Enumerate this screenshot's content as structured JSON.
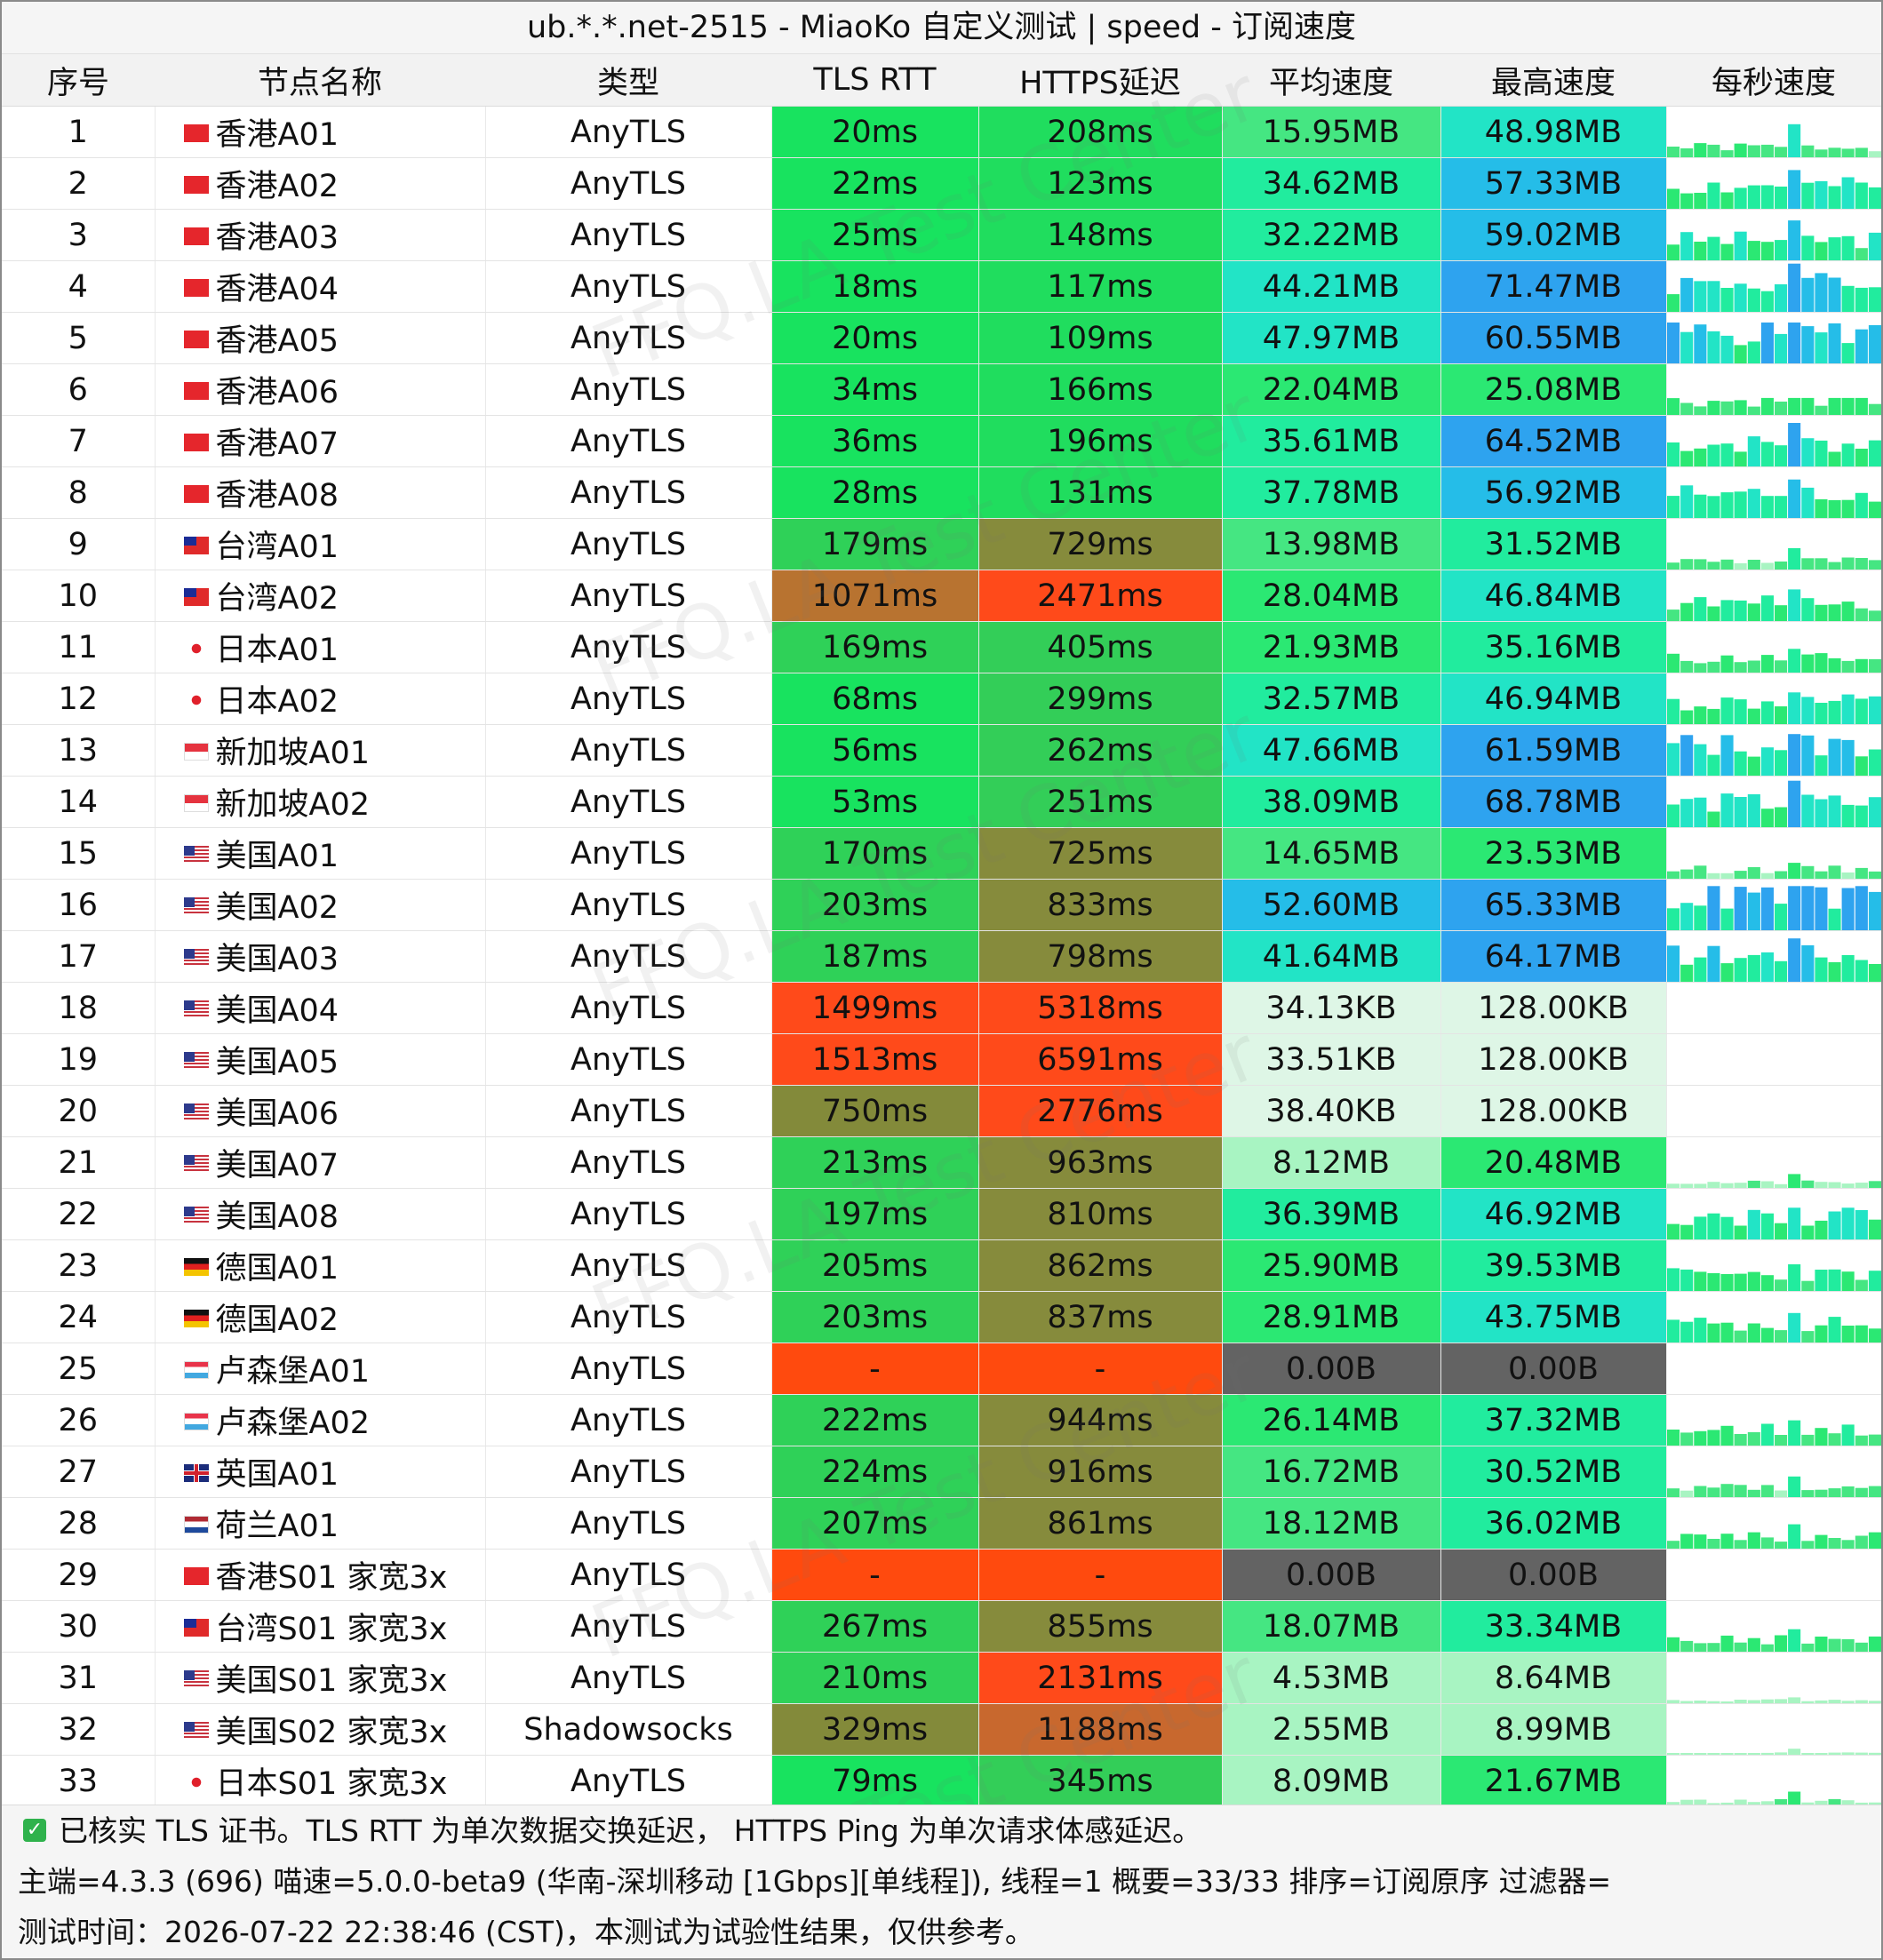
{
  "title": "ub.*.*.net-2515 - MiaoKo 自定义测试 | speed - 订阅速度",
  "watermark": "FFQ.LA Test Center",
  "headers": [
    "序号",
    "节点名称",
    "类型",
    "TLS RTT",
    "HTTPS延迟",
    "平均速度",
    "最高速度",
    "每秒速度"
  ],
  "rows": [
    {
      "no": "1",
      "flag": "hk",
      "name": "香港A01",
      "type": "AnyTLS",
      "tls": "20ms",
      "https": "208ms",
      "avg": "15.95MB",
      "max": "48.98MB"
    },
    {
      "no": "2",
      "flag": "hk",
      "name": "香港A02",
      "type": "AnyTLS",
      "tls": "22ms",
      "https": "123ms",
      "avg": "34.62MB",
      "max": "57.33MB"
    },
    {
      "no": "3",
      "flag": "hk",
      "name": "香港A03",
      "type": "AnyTLS",
      "tls": "25ms",
      "https": "148ms",
      "avg": "32.22MB",
      "max": "59.02MB"
    },
    {
      "no": "4",
      "flag": "hk",
      "name": "香港A04",
      "type": "AnyTLS",
      "tls": "18ms",
      "https": "117ms",
      "avg": "44.21MB",
      "max": "71.47MB"
    },
    {
      "no": "5",
      "flag": "hk",
      "name": "香港A05",
      "type": "AnyTLS",
      "tls": "20ms",
      "https": "109ms",
      "avg": "47.97MB",
      "max": "60.55MB"
    },
    {
      "no": "6",
      "flag": "hk",
      "name": "香港A06",
      "type": "AnyTLS",
      "tls": "34ms",
      "https": "166ms",
      "avg": "22.04MB",
      "max": "25.08MB"
    },
    {
      "no": "7",
      "flag": "hk",
      "name": "香港A07",
      "type": "AnyTLS",
      "tls": "36ms",
      "https": "196ms",
      "avg": "35.61MB",
      "max": "64.52MB"
    },
    {
      "no": "8",
      "flag": "hk",
      "name": "香港A08",
      "type": "AnyTLS",
      "tls": "28ms",
      "https": "131ms",
      "avg": "37.78MB",
      "max": "56.92MB"
    },
    {
      "no": "9",
      "flag": "tw",
      "name": "台湾A01",
      "type": "AnyTLS",
      "tls": "179ms",
      "https": "729ms",
      "avg": "13.98MB",
      "max": "31.52MB"
    },
    {
      "no": "10",
      "flag": "tw",
      "name": "台湾A02",
      "type": "AnyTLS",
      "tls": "1071ms",
      "https": "2471ms",
      "avg": "28.04MB",
      "max": "46.84MB"
    },
    {
      "no": "11",
      "flag": "jp",
      "name": "日本A01",
      "type": "AnyTLS",
      "tls": "169ms",
      "https": "405ms",
      "avg": "21.93MB",
      "max": "35.16MB"
    },
    {
      "no": "12",
      "flag": "jp",
      "name": "日本A02",
      "type": "AnyTLS",
      "tls": "68ms",
      "https": "299ms",
      "avg": "32.57MB",
      "max": "46.94MB"
    },
    {
      "no": "13",
      "flag": "sg",
      "name": "新加坡A01",
      "type": "AnyTLS",
      "tls": "56ms",
      "https": "262ms",
      "avg": "47.66MB",
      "max": "61.59MB"
    },
    {
      "no": "14",
      "flag": "sg",
      "name": "新加坡A02",
      "type": "AnyTLS",
      "tls": "53ms",
      "https": "251ms",
      "avg": "38.09MB",
      "max": "68.78MB"
    },
    {
      "no": "15",
      "flag": "us",
      "name": "美国A01",
      "type": "AnyTLS",
      "tls": "170ms",
      "https": "725ms",
      "avg": "14.65MB",
      "max": "23.53MB"
    },
    {
      "no": "16",
      "flag": "us",
      "name": "美国A02",
      "type": "AnyTLS",
      "tls": "203ms",
      "https": "833ms",
      "avg": "52.60MB",
      "max": "65.33MB"
    },
    {
      "no": "17",
      "flag": "us",
      "name": "美国A03",
      "type": "AnyTLS",
      "tls": "187ms",
      "https": "798ms",
      "avg": "41.64MB",
      "max": "64.17MB"
    },
    {
      "no": "18",
      "flag": "us",
      "name": "美国A04",
      "type": "AnyTLS",
      "tls": "1499ms",
      "https": "5318ms",
      "avg": "34.13KB",
      "max": "128.00KB"
    },
    {
      "no": "19",
      "flag": "us",
      "name": "美国A05",
      "type": "AnyTLS",
      "tls": "1513ms",
      "https": "6591ms",
      "avg": "33.51KB",
      "max": "128.00KB"
    },
    {
      "no": "20",
      "flag": "us",
      "name": "美国A06",
      "type": "AnyTLS",
      "tls": "750ms",
      "https": "2776ms",
      "avg": "38.40KB",
      "max": "128.00KB"
    },
    {
      "no": "21",
      "flag": "us",
      "name": "美国A07",
      "type": "AnyTLS",
      "tls": "213ms",
      "https": "963ms",
      "avg": "8.12MB",
      "max": "20.48MB"
    },
    {
      "no": "22",
      "flag": "us",
      "name": "美国A08",
      "type": "AnyTLS",
      "tls": "197ms",
      "https": "810ms",
      "avg": "36.39MB",
      "max": "46.92MB"
    },
    {
      "no": "23",
      "flag": "de",
      "name": "德国A01",
      "type": "AnyTLS",
      "tls": "205ms",
      "https": "862ms",
      "avg": "25.90MB",
      "max": "39.53MB"
    },
    {
      "no": "24",
      "flag": "de",
      "name": "德国A02",
      "type": "AnyTLS",
      "tls": "203ms",
      "https": "837ms",
      "avg": "28.91MB",
      "max": "43.75MB"
    },
    {
      "no": "25",
      "flag": "lu",
      "name": "卢森堡A01",
      "type": "AnyTLS",
      "tls": "-",
      "https": "-",
      "avg": "0.00B",
      "max": "0.00B"
    },
    {
      "no": "26",
      "flag": "lu",
      "name": "卢森堡A02",
      "type": "AnyTLS",
      "tls": "222ms",
      "https": "944ms",
      "avg": "26.14MB",
      "max": "37.32MB"
    },
    {
      "no": "27",
      "flag": "gb",
      "name": "英国A01",
      "type": "AnyTLS",
      "tls": "224ms",
      "https": "916ms",
      "avg": "16.72MB",
      "max": "30.52MB"
    },
    {
      "no": "28",
      "flag": "nl",
      "name": "荷兰A01",
      "type": "AnyTLS",
      "tls": "207ms",
      "https": "861ms",
      "avg": "18.12MB",
      "max": "36.02MB"
    },
    {
      "no": "29",
      "flag": "hk",
      "name": "香港S01 家宽3x",
      "type": "AnyTLS",
      "tls": "-",
      "https": "-",
      "avg": "0.00B",
      "max": "0.00B"
    },
    {
      "no": "30",
      "flag": "tw",
      "name": "台湾S01 家宽3x",
      "type": "AnyTLS",
      "tls": "267ms",
      "https": "855ms",
      "avg": "18.07MB",
      "max": "33.34MB"
    },
    {
      "no": "31",
      "flag": "us",
      "name": "美国S01 家宽3x",
      "type": "AnyTLS",
      "tls": "210ms",
      "https": "2131ms",
      "avg": "4.53MB",
      "max": "8.64MB"
    },
    {
      "no": "32",
      "flag": "us",
      "name": "美国S02 家宽3x",
      "type": "Shadowsocks",
      "tls": "329ms",
      "https": "1188ms",
      "avg": "2.55MB",
      "max": "8.99MB"
    },
    {
      "no": "33",
      "flag": "jp",
      "name": "日本S01 家宽3x",
      "type": "AnyTLS",
      "tls": "79ms",
      "https": "345ms",
      "avg": "8.09MB",
      "max": "21.67MB"
    }
  ],
  "footer": {
    "line1": "已核实 TLS 证书。TLS RTT 为单次数据交换延迟， HTTPS Ping 为单次请求体感延迟。",
    "line2": "主端=4.3.3 (696) 喵速=5.0.0-beta9 (华南-深圳移动 [1Gbps][单线程]), 线程=1 概要=33/33 排序=订阅原序 过滤器=",
    "line3": "测试时间：2026-07-22 22:38:46 (CST)，本测试为试验性结果，仅供参考。"
  }
}
